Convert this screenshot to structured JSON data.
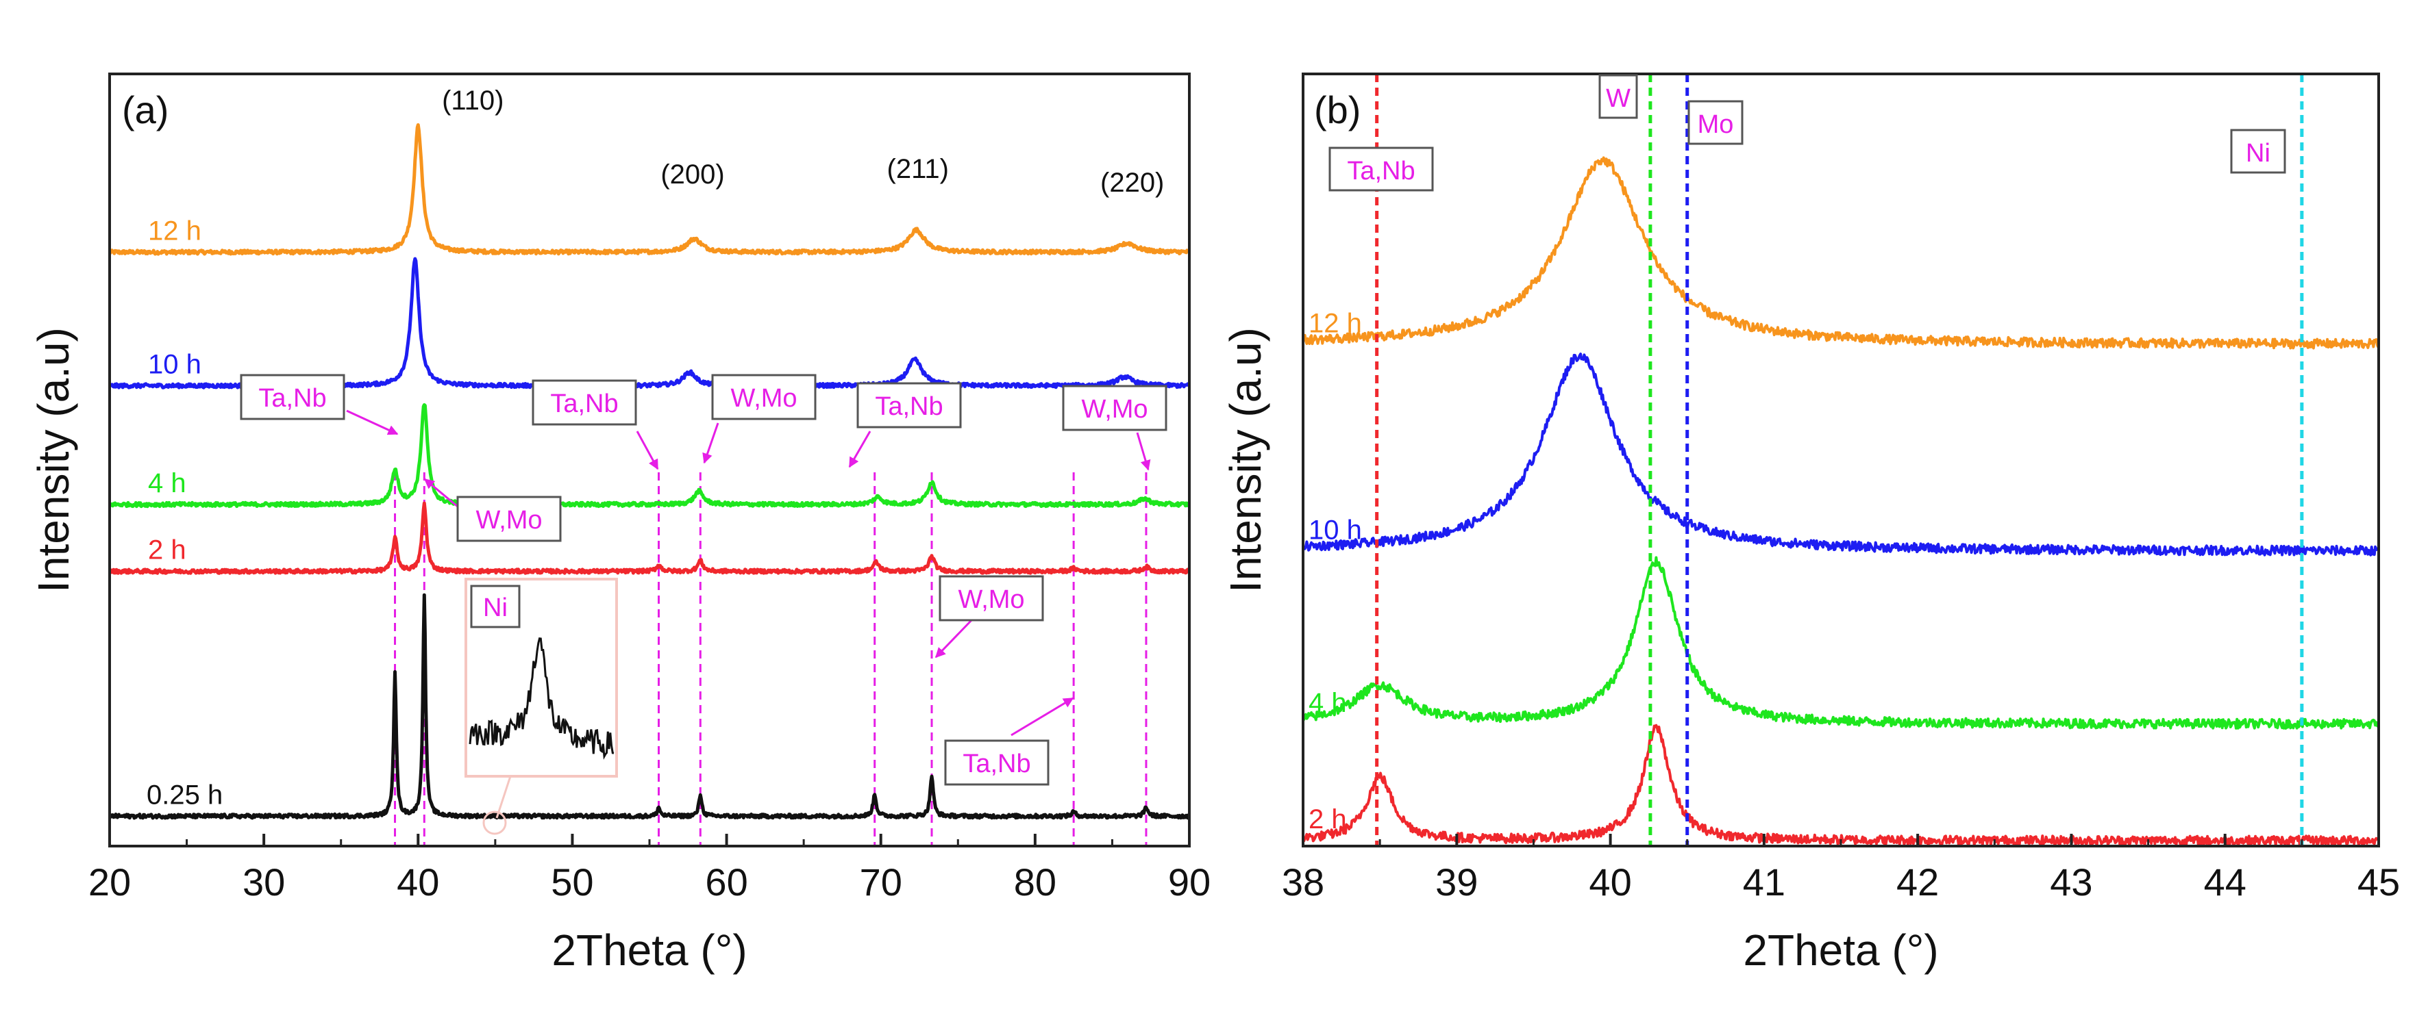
{
  "chart_data": [
    {
      "type": "line",
      "panel_label": "(a)",
      "xlabel": "2Theta (°)",
      "ylabel": "Intensity (a.u)",
      "xlim": [
        20,
        90
      ],
      "x_ticks": [
        20,
        30,
        40,
        50,
        60,
        70,
        80,
        90
      ],
      "y_ticks": "none",
      "legend": "none",
      "series": [
        {
          "name": "12 h",
          "color": "#f7941d",
          "baseline": 0.78,
          "peaks": [
            {
              "x": 40.0,
              "height": 0.17,
              "width": 0.55
            },
            {
              "x": 57.9,
              "height": 0.018,
              "width": 1.0
            },
            {
              "x": 72.3,
              "height": 0.03,
              "width": 1.1
            },
            {
              "x": 86.0,
              "height": 0.012,
              "width": 1.2
            }
          ]
        },
        {
          "name": "10 h",
          "color": "#1d1df2",
          "baseline": 0.6,
          "peaks": [
            {
              "x": 39.8,
              "height": 0.17,
              "width": 0.55
            },
            {
              "x": 57.6,
              "height": 0.018,
              "width": 0.9
            },
            {
              "x": 72.2,
              "height": 0.035,
              "width": 1.0
            },
            {
              "x": 85.8,
              "height": 0.012,
              "width": 1.1
            }
          ]
        },
        {
          "name": "4 h",
          "color": "#1ee61e",
          "baseline": 0.44,
          "peaks": [
            {
              "x": 38.5,
              "height": 0.045,
              "width": 0.45
            },
            {
              "x": 40.4,
              "height": 0.135,
              "width": 0.45
            },
            {
              "x": 58.2,
              "height": 0.018,
              "width": 0.6
            },
            {
              "x": 69.8,
              "height": 0.01,
              "width": 0.6
            },
            {
              "x": 73.3,
              "height": 0.03,
              "width": 0.6
            },
            {
              "x": 87.1,
              "height": 0.008,
              "width": 0.7
            }
          ]
        },
        {
          "name": "2 h",
          "color": "#f0282d",
          "baseline": 0.35,
          "peaks": [
            {
              "x": 38.5,
              "height": 0.045,
              "width": 0.3
            },
            {
              "x": 40.4,
              "height": 0.09,
              "width": 0.3
            },
            {
              "x": 55.6,
              "height": 0.008,
              "width": 0.35
            },
            {
              "x": 58.3,
              "height": 0.014,
              "width": 0.35
            },
            {
              "x": 69.7,
              "height": 0.012,
              "width": 0.4
            },
            {
              "x": 73.3,
              "height": 0.02,
              "width": 0.4
            },
            {
              "x": 82.5,
              "height": 0.004,
              "width": 0.4
            },
            {
              "x": 87.2,
              "height": 0.006,
              "width": 0.4
            }
          ]
        },
        {
          "name": "0.25 h",
          "color": "#111111",
          "baseline": 0.02,
          "peaks": [
            {
              "x": 38.5,
              "height": 0.195,
              "width": 0.18
            },
            {
              "x": 40.4,
              "height": 0.3,
              "width": 0.18
            },
            {
              "x": 55.6,
              "height": 0.012,
              "width": 0.2
            },
            {
              "x": 58.3,
              "height": 0.03,
              "width": 0.2
            },
            {
              "x": 69.6,
              "height": 0.03,
              "width": 0.22
            },
            {
              "x": 73.3,
              "height": 0.055,
              "width": 0.22
            },
            {
              "x": 82.5,
              "height": 0.006,
              "width": 0.25
            },
            {
              "x": 87.2,
              "height": 0.012,
              "width": 0.25
            }
          ]
        }
      ],
      "peak_labels": [
        {
          "text": "(110)",
          "x": 40.0
        },
        {
          "text": "(200)",
          "x": 57.8
        },
        {
          "text": "(211)",
          "x": 72.4
        },
        {
          "text": "(220)",
          "x": 86.3
        }
      ],
      "reference_lines": [
        38.5,
        40.4,
        55.6,
        58.3,
        69.6,
        73.3,
        82.5,
        87.2
      ],
      "annotations": [
        "Ta,Nb",
        "W,Mo",
        "Ta,Nb",
        "W,Mo",
        "Ta,Nb",
        "W,Mo",
        "W,Mo",
        "Ta,Nb",
        "Ni"
      ],
      "inset": {
        "label": "Ni",
        "near_x": 44.8
      }
    },
    {
      "type": "line",
      "panel_label": "(b)",
      "xlabel": "2Theta (°)",
      "ylabel": "Intensity (a.u)",
      "xlim": [
        38,
        45
      ],
      "x_ticks": [
        38,
        39,
        40,
        41,
        42,
        43,
        44,
        45
      ],
      "y_ticks": "none",
      "legend": "none",
      "series": [
        {
          "name": "12 h",
          "color": "#f7941d",
          "baseline": 0.66,
          "tail_drop": 0.0,
          "peaks": [
            {
              "x": 39.95,
              "height": 0.245,
              "width": 0.55
            }
          ]
        },
        {
          "name": "10 h",
          "color": "#1d1df2",
          "baseline": 0.385,
          "peaks": [
            {
              "x": 39.8,
              "height": 0.26,
              "width": 0.5
            }
          ]
        },
        {
          "name": "4 h",
          "color": "#1ee61e",
          "baseline": 0.155,
          "peaks": [
            {
              "x": 38.5,
              "height": 0.05,
              "width": 0.35
            },
            {
              "x": 40.3,
              "height": 0.215,
              "width": 0.3
            }
          ]
        },
        {
          "name": "2 h",
          "color": "#f0282d",
          "baseline": 0.0,
          "peaks": [
            {
              "x": 38.5,
              "height": 0.085,
              "width": 0.18
            },
            {
              "x": 40.3,
              "height": 0.15,
              "width": 0.18
            }
          ]
        }
      ],
      "reference_lines": [
        {
          "label": "Ta,Nb",
          "x": 38.48,
          "color": "#f0282d"
        },
        {
          "label": "W",
          "x": 40.26,
          "color": "#1ee61e"
        },
        {
          "label": "Mo",
          "x": 40.5,
          "color": "#1d1df2"
        },
        {
          "label": "Ni",
          "x": 44.5,
          "color": "#1fd6e6"
        }
      ]
    }
  ]
}
